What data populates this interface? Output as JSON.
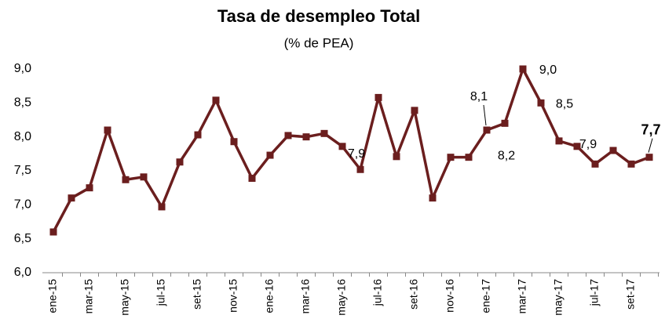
{
  "chart_data": {
    "type": "line",
    "title": "Tasa de desempleo Total",
    "subtitle": "(% de PEA)",
    "categories": [
      "ene-15",
      null,
      "mar-15",
      null,
      "may-15",
      null,
      "jul-15",
      null,
      "set-15",
      null,
      "nov-15",
      null,
      "ene-16",
      null,
      "mar-16",
      null,
      "may-16",
      null,
      "jul-16",
      null,
      "set-16",
      null,
      "nov-16",
      null,
      "ene-17",
      null,
      "mar-17",
      null,
      "may-17",
      null,
      "jul-17",
      null,
      "set-17",
      null
    ],
    "series": [
      {
        "name": "Tasa de desempleo",
        "color": "#6b1e1e",
        "values": [
          6.6,
          7.1,
          7.25,
          8.1,
          7.37,
          7.41,
          6.97,
          7.63,
          8.03,
          8.54,
          7.93,
          7.39,
          7.73,
          8.02,
          8.0,
          8.05,
          7.86,
          7.52,
          8.58,
          7.71,
          8.39,
          7.1,
          7.7,
          7.7,
          8.1,
          8.2,
          9.0,
          8.5,
          7.94,
          7.86,
          7.6,
          7.8,
          7.6,
          7.7
        ],
        "value_labels": [
          null,
          null,
          null,
          null,
          null,
          null,
          null,
          null,
          null,
          null,
          null,
          null,
          null,
          null,
          null,
          null,
          "7,9",
          null,
          null,
          null,
          null,
          null,
          null,
          null,
          "8,1",
          "8,2",
          "9,0",
          "8,5",
          null,
          "7,9",
          null,
          null,
          null,
          "7,7"
        ]
      }
    ],
    "ylim": [
      6.0,
      9.0
    ],
    "yticks": [
      {
        "value": 6.0,
        "label": "6,0"
      },
      {
        "value": 6.5,
        "label": "6,5"
      },
      {
        "value": 7.0,
        "label": "7,0"
      },
      {
        "value": 7.5,
        "label": "7,5"
      },
      {
        "value": 8.0,
        "label": "8,0"
      },
      {
        "value": 8.5,
        "label": "8,5"
      },
      {
        "value": 9.0,
        "label": "9,0"
      }
    ],
    "grid": false
  }
}
